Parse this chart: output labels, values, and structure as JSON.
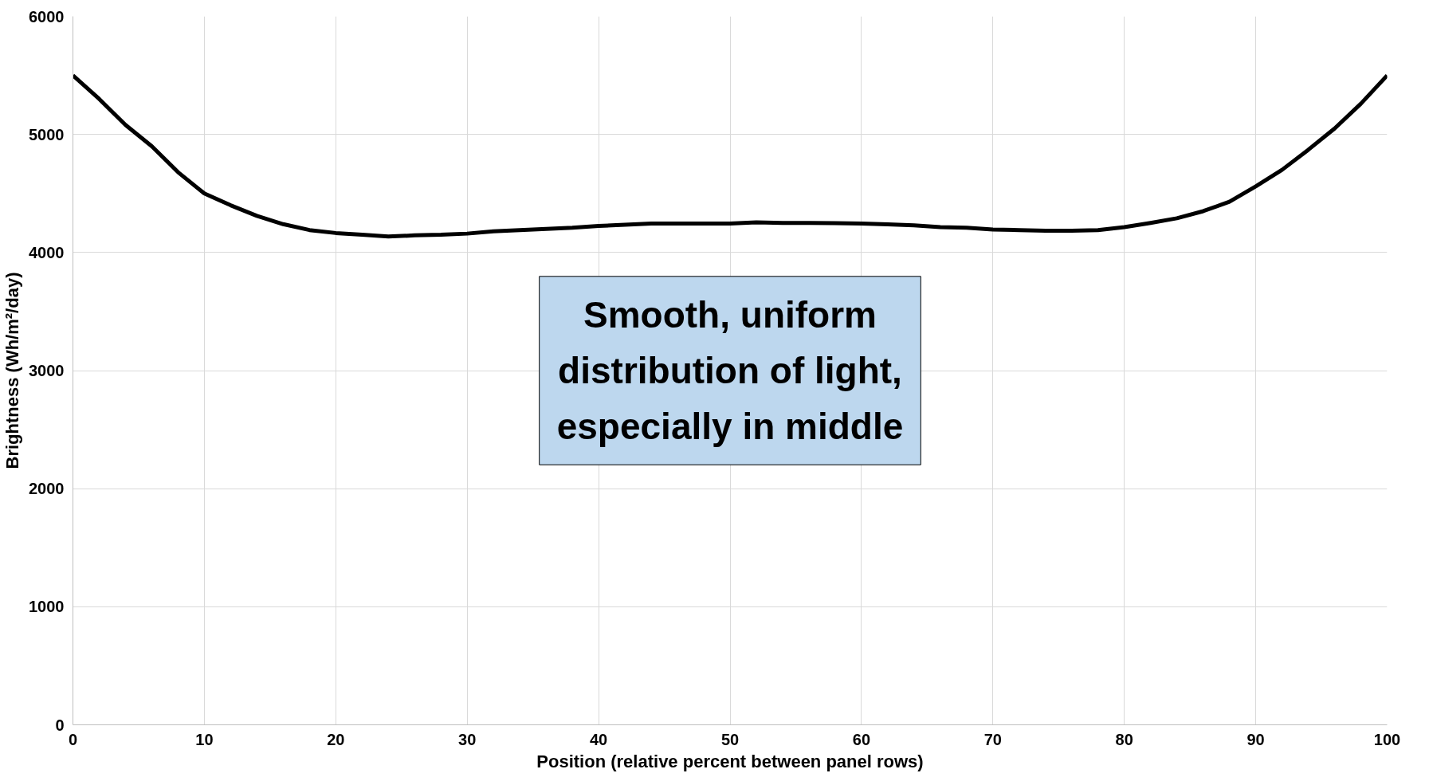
{
  "chart_data": {
    "type": "line",
    "xlabel": "Position (relative percent between panel rows)",
    "ylabel": "Brightness (Wh/m²/day)",
    "x": [
      0,
      2,
      4,
      6,
      8,
      10,
      12,
      14,
      16,
      18,
      20,
      22,
      24,
      26,
      28,
      30,
      32,
      34,
      36,
      38,
      40,
      42,
      44,
      46,
      48,
      50,
      52,
      54,
      56,
      58,
      60,
      62,
      64,
      66,
      68,
      70,
      72,
      74,
      76,
      78,
      80,
      82,
      84,
      86,
      88,
      90,
      92,
      94,
      96,
      98,
      100
    ],
    "series": [
      {
        "color": "#000000",
        "values": [
          5500,
          5300,
          5080,
          4900,
          4680,
          4500,
          4400,
          4310,
          4240,
          4190,
          4165,
          4150,
          4135,
          4145,
          4150,
          4160,
          4180,
          4190,
          4200,
          4210,
          4225,
          4235,
          4245,
          4245,
          4245,
          4245,
          4255,
          4250,
          4250,
          4248,
          4245,
          4238,
          4230,
          4215,
          4210,
          4195,
          4190,
          4185,
          4185,
          4190,
          4215,
          4250,
          4290,
          4350,
          4430,
          4560,
          4700,
          4870,
          5050,
          5260,
          5500
        ]
      }
    ],
    "xlim": [
      0,
      100
    ],
    "xticks": [
      0,
      10,
      20,
      30,
      40,
      50,
      60,
      70,
      80,
      90,
      100
    ],
    "ylim": [
      0,
      6000
    ],
    "yticks": [
      0,
      1000,
      2000,
      3000,
      4000,
      5000,
      6000
    ],
    "grid": true,
    "marker": "none",
    "line_style": "solid",
    "annotations": [
      "Smooth, uniform distribution of light, especially in middle"
    ]
  }
}
